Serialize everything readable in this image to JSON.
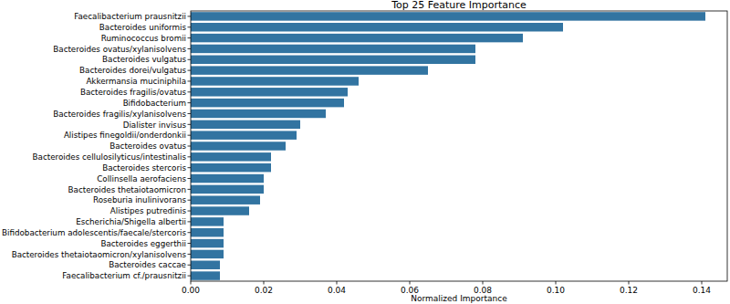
{
  "chart_data": {
    "type": "bar",
    "orientation": "horizontal",
    "title": "Top 25 Feature Importance",
    "x_label": "Normalized Importance",
    "categories": [
      "Faecalibacterium prausnitzii",
      "Bacteroides uniformis",
      "Ruminococcus bromii",
      "Bacteroides ovatus/xylanisolvens",
      "Bacteroides vulgatus",
      "Bacteroides dorei/vulgatus",
      "Akkermansia muciniphila",
      "Bacteroides fragilis/ovatus",
      "Bifidobacterium",
      "Bacteroides fragilis/xylanisolvens",
      "Dialister invisus",
      "Alistipes finegoldii/onderdonkii",
      "Bacteroides ovatus",
      "Bacteroides cellulosilyticus/intestinalis",
      "Bacteroides stercoris",
      "Collinsella aerofaciens",
      "Bacteroides thetaiotaomicron",
      "Roseburia inulinivorans",
      "Alistipes putredinis",
      "Escherichia/Shigella albertii",
      "Bifidobacterium adolescentis/faecale/stercoris",
      "Bacteroides eggerthii",
      "Bacteroides thetaiotaomicron/xylanisolvens",
      "Bacteroides caccae",
      "Faecalibacterium cf./prausnitzii"
    ],
    "values": [
      0.141,
      0.102,
      0.091,
      0.078,
      0.078,
      0.065,
      0.046,
      0.043,
      0.042,
      0.037,
      0.03,
      0.029,
      0.026,
      0.022,
      0.022,
      0.02,
      0.02,
      0.019,
      0.016,
      0.009,
      0.009,
      0.009,
      0.009,
      0.008,
      0.008
    ],
    "color": "#3274a1",
    "xlim": [
      0,
      0.147
    ],
    "xticks": [
      {
        "value": 0,
        "label": "0.00"
      },
      {
        "value": 0.02,
        "label": "0.02"
      },
      {
        "value": 0.04,
        "label": "0.04"
      },
      {
        "value": 0.06,
        "label": "0.06"
      },
      {
        "value": 0.08,
        "label": "0.08"
      },
      {
        "value": 0.1,
        "label": "0.10"
      },
      {
        "value": 0.12,
        "label": "0.12"
      },
      {
        "value": 0.14,
        "label": "0.14"
      }
    ],
    "grid": false
  }
}
